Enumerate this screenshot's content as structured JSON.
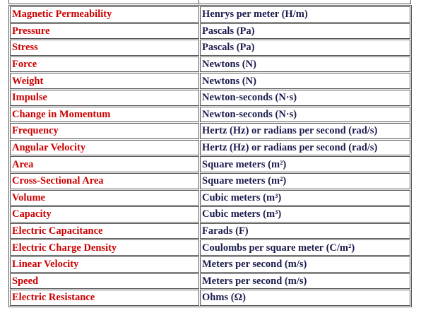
{
  "table": {
    "rows": [
      [
        "Magnetic Permeability",
        "Henrys per meter (H/m)"
      ],
      [
        "Pressure",
        "Pascals (Pa)"
      ],
      [
        "Stress",
        "Pascals (Pa)"
      ],
      [
        "Force",
        "Newtons (N)"
      ],
      [
        "Weight",
        "Newtons (N)"
      ],
      [
        "Impulse",
        "Newton-seconds (N·s)"
      ],
      [
        "Change in Momentum",
        "Newton-seconds (N·s)"
      ],
      [
        "Frequency",
        "Hertz (Hz) or radians per second (rad/s)"
      ],
      [
        "Angular Velocity",
        "Hertz (Hz) or radians per second (rad/s)"
      ],
      [
        "Area",
        "Square meters (m²)"
      ],
      [
        "Cross-Sectional Area",
        "Square meters (m²)"
      ],
      [
        "Volume",
        "Cubic meters (m³)"
      ],
      [
        "Capacity",
        "Cubic meters (m³)"
      ],
      [
        "Electric Capacitance",
        "Farads (F)"
      ],
      [
        "Electric Charge Density",
        "Coulombs per square meter (C/m²)"
      ],
      [
        "Linear Velocity",
        "Meters per second (m/s)"
      ],
      [
        "Speed",
        "Meters per second (m/s)"
      ],
      [
        "Electric Resistance",
        "Ohms (Ω)"
      ]
    ]
  }
}
